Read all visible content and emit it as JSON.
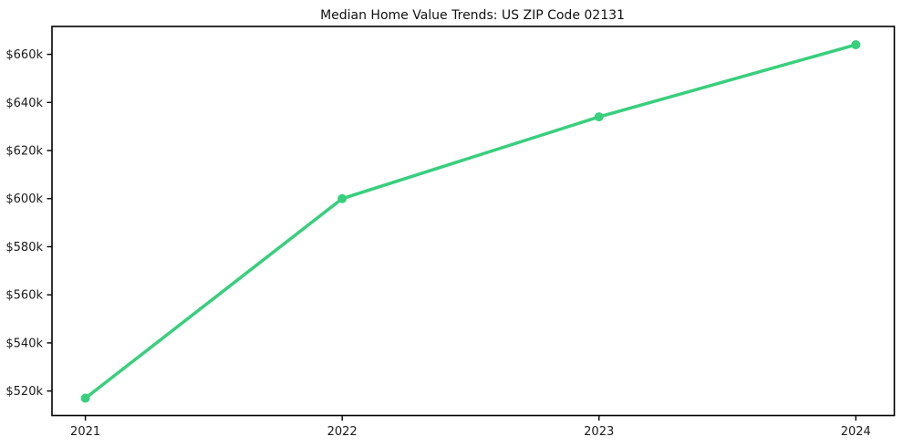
{
  "chart_data": {
    "type": "line",
    "title": "Median Home Value Trends: US ZIP Code 02131",
    "x": [
      2021,
      2022,
      2023,
      2024
    ],
    "values": [
      517000,
      600000,
      634000,
      664000
    ],
    "xlabel": "",
    "ylabel": "",
    "xticks": {
      "values": [
        2021,
        2022,
        2023,
        2024
      ],
      "labels": [
        "2021",
        "2022",
        "2023",
        "2024"
      ]
    },
    "yticks": {
      "values": [
        520000,
        540000,
        560000,
        580000,
        600000,
        620000,
        640000,
        660000
      ],
      "labels": [
        "$520k",
        "$540k",
        "$560k",
        "$580k",
        "$600k",
        "$620k",
        "$640k",
        "$660k"
      ]
    },
    "xlim": [
      2020.87,
      2024.15
    ],
    "ylim": [
      509800,
      671600
    ],
    "grid": false,
    "legend": null,
    "colors": {
      "line": "#38cf7d",
      "marker": "#38cf7d",
      "frame": "#000000",
      "tick": "#000000",
      "text": "#1a1a1a",
      "background": "#ffffff"
    },
    "marker_shape": "circle",
    "marker_radius": 5,
    "line_width": 3.5
  }
}
